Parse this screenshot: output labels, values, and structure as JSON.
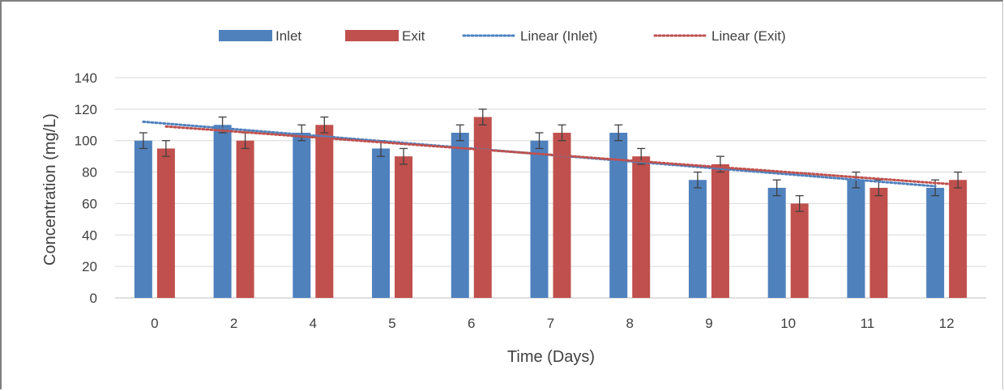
{
  "chart_data": {
    "type": "bar",
    "categories": [
      "0",
      "2",
      "4",
      "5",
      "6",
      "7",
      "8",
      "9",
      "10",
      "11",
      "12"
    ],
    "series": [
      {
        "name": "Inlet",
        "color": "#4f81bd",
        "values": [
          100,
          110,
          105,
          95,
          105,
          100,
          105,
          75,
          70,
          75,
          70
        ],
        "error": 5
      },
      {
        "name": "Exit",
        "color": "#c0504d",
        "values": [
          95,
          100,
          110,
          90,
          115,
          105,
          90,
          85,
          60,
          70,
          75
        ],
        "error": 5
      }
    ],
    "trendlines": [
      {
        "name": "Linear (Inlet)",
        "color": "#4f81bd",
        "style": "dotted",
        "start": 112,
        "end": 71
      },
      {
        "name": "Linear (Exit)",
        "color": "#c0504d",
        "style": "dotted",
        "start": 109,
        "end": 72
      }
    ],
    "xlabel": "Time (Days)",
    "ylabel": "Concentration (mg/L)",
    "ylim": [
      0,
      140
    ],
    "yticks": [
      0,
      20,
      40,
      60,
      80,
      100,
      120,
      140
    ],
    "grid": true,
    "legend": "top"
  }
}
